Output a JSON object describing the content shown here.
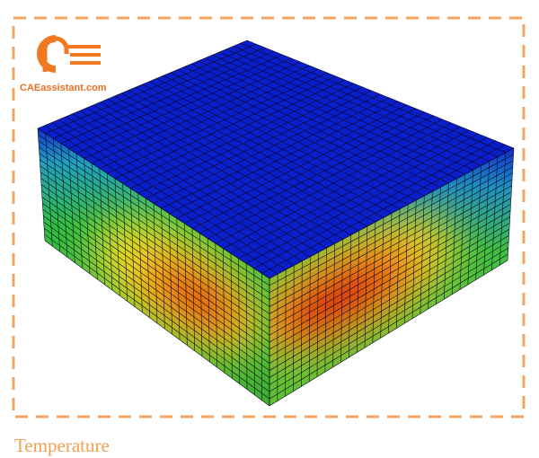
{
  "logo": {
    "text": "CAEassistant.com"
  },
  "caption": "Temperature"
}
